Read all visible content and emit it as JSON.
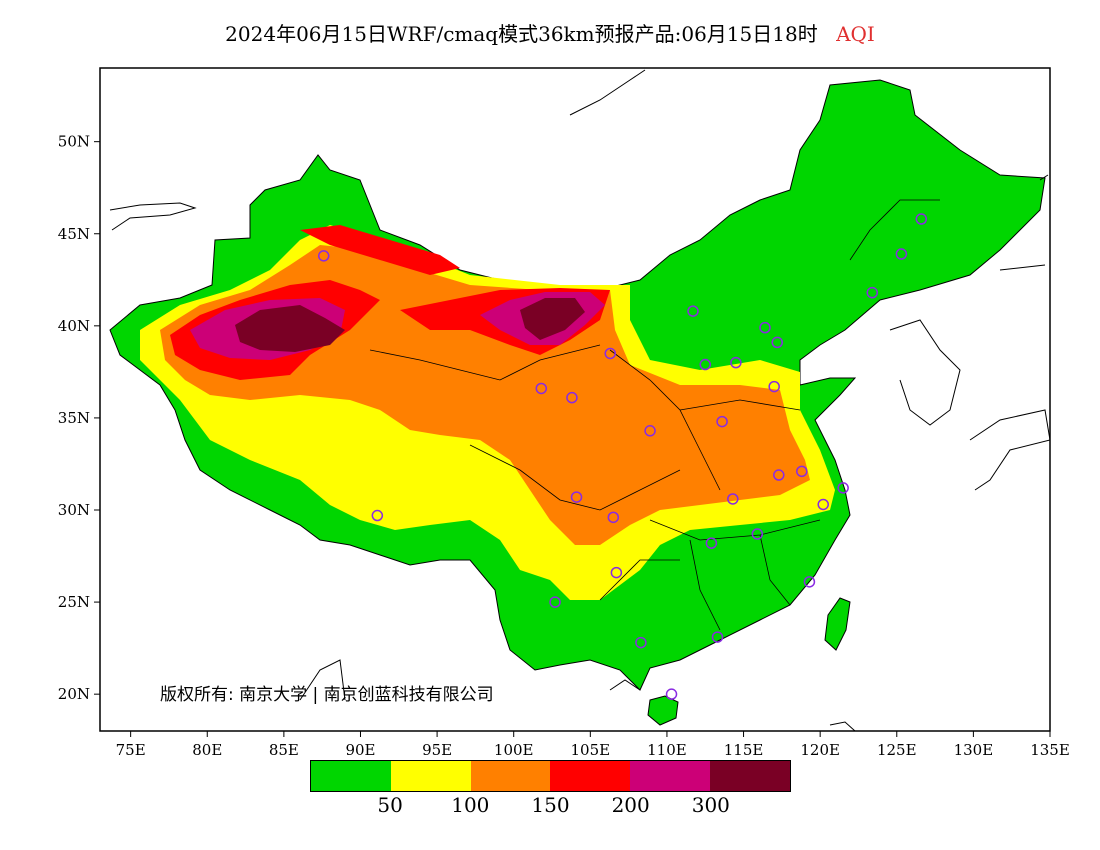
{
  "title": {
    "text": "2024年06月15日WRF/cmaq模式36km预报产品:06月15日18时",
    "variable": "AQI",
    "variable_color": "#e03030"
  },
  "axes": {
    "x_ticks": [
      "75E",
      "80E",
      "85E",
      "90E",
      "95E",
      "100E",
      "105E",
      "110E",
      "115E",
      "120E",
      "125E",
      "130E",
      "135E"
    ],
    "y_ticks": [
      "50N",
      "45N",
      "40N",
      "35N",
      "30N",
      "25N",
      "20N"
    ],
    "lon_range": [
      73,
      135
    ],
    "lat_range": [
      18,
      54
    ]
  },
  "legend": {
    "colors": [
      "#00d600",
      "#ffff00",
      "#ff8000",
      "#ff0000",
      "#cc0077",
      "#7a0025"
    ],
    "labels": [
      "50",
      "100",
      "150",
      "200",
      "300"
    ]
  },
  "copyright": "版权所有: 南京大学 | 南京创蓝科技有限公司",
  "cities": [
    [
      87.6,
      43.8
    ],
    [
      91.1,
      29.7
    ],
    [
      101.8,
      36.6
    ],
    [
      103.8,
      36.1
    ],
    [
      106.3,
      38.5
    ],
    [
      104.1,
      30.7
    ],
    [
      106.5,
      29.6
    ],
    [
      106.7,
      26.6
    ],
    [
      102.7,
      25.0
    ],
    [
      108.3,
      22.8
    ],
    [
      110.3,
      20.0
    ],
    [
      113.3,
      23.1
    ],
    [
      112.9,
      28.2
    ],
    [
      115.9,
      28.7
    ],
    [
      119.3,
      26.1
    ],
    [
      120.2,
      30.3
    ],
    [
      121.5,
      31.2
    ],
    [
      118.8,
      32.1
    ],
    [
      117.3,
      31.9
    ],
    [
      114.3,
      30.6
    ],
    [
      113.6,
      34.8
    ],
    [
      108.9,
      34.3
    ],
    [
      112.5,
      37.9
    ],
    [
      114.5,
      38.0
    ],
    [
      116.4,
      39.9
    ],
    [
      117.2,
      39.1
    ],
    [
      117.0,
      36.7
    ],
    [
      111.7,
      40.8
    ],
    [
      123.4,
      41.8
    ],
    [
      125.3,
      43.9
    ],
    [
      126.6,
      45.8
    ]
  ],
  "city_marker_color": "#8a2be2"
}
